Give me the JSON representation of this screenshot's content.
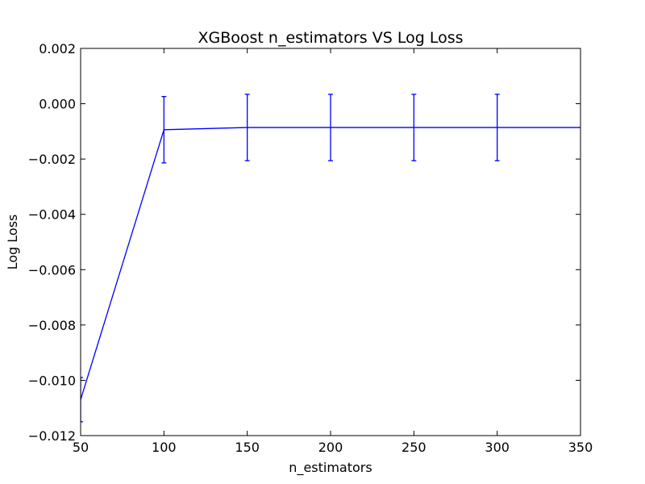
{
  "chart_data": {
    "type": "line",
    "title": "XGBoost n_estimators VS Log Loss",
    "xlabel": "n_estimators",
    "ylabel": "Log Loss",
    "xlim": [
      50,
      350
    ],
    "ylim": [
      -0.012,
      0.002
    ],
    "x_ticks": [
      50,
      100,
      150,
      200,
      250,
      300,
      350
    ],
    "x_tick_labels": [
      "50",
      "100",
      "150",
      "200",
      "250",
      "300",
      "350"
    ],
    "y_ticks": [
      0.002,
      0.0,
      -0.002,
      -0.004,
      -0.006,
      -0.008,
      -0.01,
      -0.012
    ],
    "y_tick_labels": [
      "0.002",
      "0.000",
      "−0.002",
      "−0.004",
      "−0.006",
      "−0.008",
      "−0.010",
      "−0.012"
    ],
    "grid": false,
    "color": "#0000ff",
    "series": [
      {
        "x": [
          50,
          100,
          150,
          200,
          250,
          300,
          350
        ],
        "y": [
          -0.0107,
          -0.00094,
          -0.00086,
          -0.00086,
          -0.00086,
          -0.00086,
          -0.00086
        ],
        "error": [
          0.0008,
          0.0012,
          0.0012,
          0.0012,
          0.0012,
          0.0012,
          0.0012
        ]
      }
    ]
  }
}
